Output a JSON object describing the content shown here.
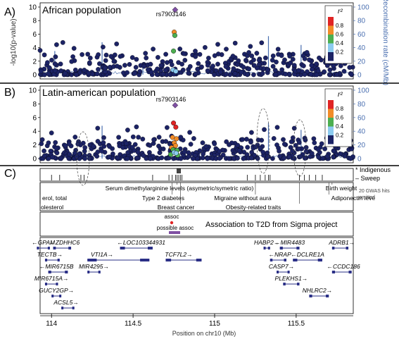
{
  "colors": {
    "navy": "#1c2365",
    "recomb": "#4a6fb0",
    "purple": "#7f4fa3",
    "red": "#e02424",
    "orange": "#f28c28",
    "green": "#4caf50",
    "lightblue": "#8ccbf0",
    "gene": "#2a2f86",
    "divider": "#000000"
  },
  "chart_data": [
    {
      "type": "scatter",
      "panel_letter": "A)",
      "title": "African population",
      "ylabel": "-log10(p-value)",
      "y2label": "Recombination rate (cM/Mb)",
      "ylim": [
        0,
        10
      ],
      "y2lim": [
        0,
        100
      ],
      "yticks": [
        "0",
        "2",
        "4",
        "6",
        "8",
        "10"
      ],
      "y2ticks": [
        "0",
        "20",
        "40",
        "60",
        "80",
        "100"
      ],
      "xlim": [
        113.93,
        115.85
      ],
      "lead_snp": {
        "label": "rs7903146",
        "x": 114.758,
        "y": 9.6
      },
      "legend": {
        "title": "r²",
        "placement": "top-right",
        "labels": [
          "0.8",
          "0.6",
          "0.4",
          "0.2"
        ]
      },
      "highlight_points": [
        {
          "x": 114.758,
          "y": 9.6,
          "c": "purple"
        },
        {
          "x": 114.752,
          "y": 6.3,
          "c": "orange"
        },
        {
          "x": 114.756,
          "y": 5.8,
          "c": "green"
        },
        {
          "x": 114.748,
          "y": 3.5,
          "c": "green"
        },
        {
          "x": 114.745,
          "y": 0.7,
          "c": "lightblue"
        },
        {
          "x": 114.762,
          "y": 0.5,
          "c": "lightblue"
        }
      ],
      "recomb_peaks": [
        {
          "x": 114.02,
          "v": 35
        },
        {
          "x": 114.31,
          "v": 48
        },
        {
          "x": 114.56,
          "v": 18
        },
        {
          "x": 115.33,
          "v": 57
        },
        {
          "x": 115.53,
          "v": 44
        }
      ]
    },
    {
      "type": "scatter",
      "panel_letter": "B)",
      "title": "Latin-american population",
      "ylabel": "",
      "ylim": [
        0,
        10
      ],
      "y2lim": [
        0,
        100
      ],
      "yticks": [
        "0",
        "2",
        "4",
        "6",
        "8",
        "10"
      ],
      "y2ticks": [
        "0",
        "20",
        "40",
        "60",
        "80",
        "100"
      ],
      "xlim": [
        113.93,
        115.85
      ],
      "lead_snp": {
        "label": "rs7903146",
        "x": 114.758,
        "y": 7.8
      },
      "legend": {
        "title": "r²",
        "placement": "top-right",
        "labels": [
          "0.8",
          "0.6",
          "0.4",
          "0.2"
        ]
      },
      "highlight_points": [
        {
          "x": 114.758,
          "y": 7.8,
          "c": "purple"
        },
        {
          "x": 114.748,
          "y": 5.2,
          "c": "red"
        },
        {
          "x": 114.762,
          "y": 4.6,
          "c": "red"
        },
        {
          "x": 114.742,
          "y": 3.1,
          "c": "orange"
        },
        {
          "x": 114.766,
          "y": 2.9,
          "c": "orange"
        },
        {
          "x": 114.752,
          "y": 2.3,
          "c": "orange"
        },
        {
          "x": 114.76,
          "y": 1.9,
          "c": "orange"
        },
        {
          "x": 114.736,
          "y": 1.6,
          "c": "orange"
        },
        {
          "x": 114.745,
          "y": 1.3,
          "c": "green"
        },
        {
          "x": 114.77,
          "y": 1.2,
          "c": "green"
        },
        {
          "x": 114.73,
          "y": 0.6,
          "c": "green"
        },
        {
          "x": 114.773,
          "y": 0.5,
          "c": "green"
        },
        {
          "x": 114.751,
          "y": 0.9,
          "c": "lightblue"
        },
        {
          "x": 114.764,
          "y": 0.8,
          "c": "lightblue"
        }
      ],
      "recomb_peaks": [
        {
          "x": 114.31,
          "v": 48
        },
        {
          "x": 115.33,
          "v": 52
        },
        {
          "x": 115.53,
          "v": 42
        }
      ]
    }
  ],
  "panel_c": {
    "letter": "C)",
    "legend": [
      "* Indigenous",
      "– Sweep"
    ],
    "gwas_traits": [
      {
        "label": "Serum dimethylarginine levels (asymetric/symetric ratio)",
        "x": 114.77
      },
      {
        "label": "Type 2 diabetes",
        "x": 114.74
      },
      {
        "label": "Breast cancer",
        "x": 114.79
      },
      {
        "label": "Migraine without aura",
        "x": 115.25
      },
      {
        "label": "Obesity-related traits",
        "x": 115.52
      },
      {
        "label": "Birth weight",
        "x": 115.72
      },
      {
        "label": "Adiponectin leve",
        "x": 115.7
      },
      {
        "label": "erol, total",
        "x": 113.93
      },
      {
        "label": "olesterol",
        "x": 113.93
      }
    ],
    "gwas_note": [
      "20 GWAS hits",
      "omitted"
    ],
    "assoc_label": "assoc",
    "possible_assoc_label": "possible assoc",
    "assoc_title": "Association to T2D from Sigma project",
    "genes": [
      {
        "name": "GPAM",
        "x1": 113.91,
        "x2": 113.99,
        "row": 0,
        "dir": "left",
        "label_x": 113.95
      },
      {
        "name": "ZDHHC6",
        "x1": 114.01,
        "x2": 114.12,
        "row": 0,
        "dir": "left",
        "label_x": 114.08
      },
      {
        "name": "LOC103344931",
        "x1": 114.42,
        "x2": 114.62,
        "row": 0,
        "dir": "left",
        "label_x": 114.55
      },
      {
        "name": "HABP2",
        "x1": 115.3,
        "x2": 115.34,
        "row": 0,
        "dir": "right",
        "label_x": 115.32
      },
      {
        "name": "MIR4483",
        "x1": 115.4,
        "x2": 115.52,
        "row": 0,
        "dir": "left",
        "label_x": 115.46
      },
      {
        "name": "ADRB1",
        "x1": 115.72,
        "x2": 115.82,
        "row": 0,
        "dir": "right",
        "label_x": 115.78
      },
      {
        "name": "TECTB",
        "x1": 113.96,
        "x2": 114.05,
        "row": 1,
        "dir": "right",
        "label_x": 113.99
      },
      {
        "name": "VTI1A",
        "x1": 114.22,
        "x2": 114.6,
        "row": 1,
        "dir": "right",
        "label_x": 114.31
      },
      {
        "name": "TCF7L2",
        "x1": 114.7,
        "x2": 114.92,
        "row": 1,
        "dir": "right",
        "label_x": 114.78
      },
      {
        "name": "NRAP",
        "x1": 115.34,
        "x2": 115.44,
        "row": 1,
        "dir": "left",
        "label_x": 115.4
      },
      {
        "name": "DCLRE1A",
        "x1": 115.48,
        "x2": 115.66,
        "row": 1,
        "dir": "left",
        "label_x": 115.57
      },
      {
        "name": "MIR6715B",
        "x1": 113.98,
        "x2": 114.1,
        "row": 2,
        "dir": "left",
        "label_x": 114.03
      },
      {
        "name": "MIR4295",
        "x1": 114.22,
        "x2": 114.3,
        "row": 2,
        "dir": "right",
        "label_x": 114.26
      },
      {
        "name": "CASP7",
        "x1": 115.38,
        "x2": 115.46,
        "row": 2,
        "dir": "right",
        "label_x": 115.41
      },
      {
        "name": "CCDC186",
        "x1": 115.72,
        "x2": 115.84,
        "row": 2,
        "dir": "left",
        "label_x": 115.79
      },
      {
        "name": "MIR6715A",
        "x1": 113.96,
        "x2": 114.04,
        "row": 3,
        "dir": "right",
        "label_x": 114.0
      },
      {
        "name": "PLEKHS1",
        "x1": 115.42,
        "x2": 115.52,
        "row": 3,
        "dir": "right",
        "label_x": 115.47
      },
      {
        "name": "GUCY2GP",
        "x1": 114.0,
        "x2": 114.06,
        "row": 4,
        "dir": "right",
        "label_x": 114.03
      },
      {
        "name": "NHLRC2",
        "x1": 115.58,
        "x2": 115.7,
        "row": 4,
        "dir": "right",
        "label_x": 115.63
      },
      {
        "name": "ACSL5",
        "x1": 114.06,
        "x2": 114.14,
        "row": 5,
        "dir": "right",
        "label_x": 114.09
      }
    ],
    "xaxis": {
      "label": "Position on chr10 (Mb)",
      "ticks": [
        114,
        114.5,
        115,
        115.5
      ],
      "tick_labels": [
        "114",
        "114.5",
        "115",
        "115.5"
      ]
    }
  }
}
